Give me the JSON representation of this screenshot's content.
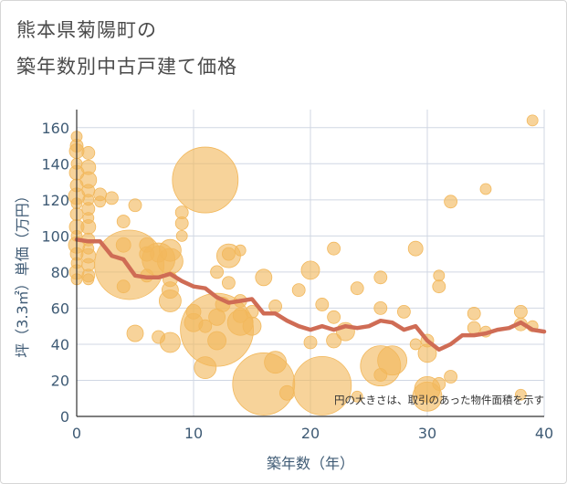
{
  "title_line1": "熊本県菊陽町の",
  "title_line2": "築年数別中古戸建て価格",
  "colors": {
    "bubble": "#f2b85c",
    "line": "#cf6c55",
    "grid": "#d0d7e3",
    "axis_text": "#3f5b75"
  },
  "chart_data": {
    "type": "scatter",
    "xlabel": "築年数（年）",
    "ylabel": "坪（3.3㎡）単価（万円）",
    "xlim": [
      0,
      40
    ],
    "ylim": [
      0,
      170
    ],
    "xticks": [
      "0",
      "10",
      "20",
      "30",
      "40"
    ],
    "yticks": [
      "0",
      "20",
      "40",
      "60",
      "80",
      "100",
      "120",
      "140",
      "160"
    ],
    "annotation": "円の大きさは、取引のあった物件面積を示す",
    "line_series": {
      "x": [
        0,
        1,
        2,
        3,
        4,
        5,
        6,
        7,
        8,
        9,
        10,
        11,
        12,
        13,
        14,
        15,
        16,
        17,
        18,
        19,
        20,
        21,
        22,
        23,
        24,
        25,
        26,
        27,
        28,
        29,
        30,
        31,
        32,
        33,
        34,
        35,
        36,
        37,
        38,
        39,
        40
      ],
      "y": [
        98,
        97,
        97,
        89,
        87,
        78,
        77,
        77,
        79,
        75,
        72,
        71,
        66,
        63,
        64,
        65,
        57,
        57,
        53,
        50,
        48,
        50,
        48,
        50,
        49,
        50,
        53,
        52,
        48,
        50,
        42,
        37,
        40,
        45,
        45,
        46,
        48,
        49,
        52,
        48,
        47
      ]
    },
    "bubbles": [
      {
        "x": 0,
        "y": 155,
        "s": 6
      },
      {
        "x": 0,
        "y": 150,
        "s": 7
      },
      {
        "x": 0,
        "y": 147,
        "s": 8
      },
      {
        "x": 0,
        "y": 140,
        "s": 6
      },
      {
        "x": 0,
        "y": 135,
        "s": 8
      },
      {
        "x": 0,
        "y": 128,
        "s": 7
      },
      {
        "x": 0,
        "y": 122,
        "s": 9
      },
      {
        "x": 0,
        "y": 118,
        "s": 6
      },
      {
        "x": 0,
        "y": 112,
        "s": 7
      },
      {
        "x": 0,
        "y": 105,
        "s": 8
      },
      {
        "x": 0,
        "y": 100,
        "s": 6
      },
      {
        "x": 0,
        "y": 95,
        "s": 9
      },
      {
        "x": 0,
        "y": 90,
        "s": 7
      },
      {
        "x": 0,
        "y": 85,
        "s": 6
      },
      {
        "x": 0,
        "y": 80,
        "s": 8
      },
      {
        "x": 0,
        "y": 76,
        "s": 6
      },
      {
        "x": 1,
        "y": 146,
        "s": 7
      },
      {
        "x": 1,
        "y": 138,
        "s": 8
      },
      {
        "x": 1,
        "y": 131,
        "s": 9
      },
      {
        "x": 1,
        "y": 125,
        "s": 7
      },
      {
        "x": 1,
        "y": 120,
        "s": 6
      },
      {
        "x": 1,
        "y": 115,
        "s": 7
      },
      {
        "x": 1,
        "y": 110,
        "s": 6
      },
      {
        "x": 1,
        "y": 105,
        "s": 8
      },
      {
        "x": 1,
        "y": 98,
        "s": 7
      },
      {
        "x": 1,
        "y": 93,
        "s": 6
      },
      {
        "x": 1,
        "y": 89,
        "s": 8
      },
      {
        "x": 1,
        "y": 84,
        "s": 7
      },
      {
        "x": 1,
        "y": 78,
        "s": 7
      },
      {
        "x": 1,
        "y": 76,
        "s": 6
      },
      {
        "x": 2,
        "y": 123,
        "s": 7
      },
      {
        "x": 2,
        "y": 119,
        "s": 6
      },
      {
        "x": 3,
        "y": 121,
        "s": 7
      },
      {
        "x": 4,
        "y": 108,
        "s": 7
      },
      {
        "x": 4,
        "y": 95,
        "s": 8
      },
      {
        "x": 4.5,
        "y": 84,
        "s": 38
      },
      {
        "x": 4,
        "y": 72,
        "s": 7
      },
      {
        "x": 5,
        "y": 117,
        "s": 7
      },
      {
        "x": 5,
        "y": 46,
        "s": 9
      },
      {
        "x": 6,
        "y": 95,
        "s": 8
      },
      {
        "x": 6,
        "y": 90,
        "s": 8
      },
      {
        "x": 6,
        "y": 78,
        "s": 7
      },
      {
        "x": 7,
        "y": 90,
        "s": 9
      },
      {
        "x": 7,
        "y": 87,
        "s": 18
      },
      {
        "x": 7,
        "y": 44,
        "s": 7
      },
      {
        "x": 8,
        "y": 92,
        "s": 12
      },
      {
        "x": 8,
        "y": 86,
        "s": 14
      },
      {
        "x": 8,
        "y": 76,
        "s": 8
      },
      {
        "x": 8,
        "y": 70,
        "s": 9
      },
      {
        "x": 8,
        "y": 64,
        "s": 12
      },
      {
        "x": 8,
        "y": 41,
        "s": 11
      },
      {
        "x": 9,
        "y": 113,
        "s": 7
      },
      {
        "x": 9,
        "y": 107,
        "s": 7
      },
      {
        "x": 9,
        "y": 100,
        "s": 6
      },
      {
        "x": 10,
        "y": 58,
        "s": 8
      },
      {
        "x": 10,
        "y": 52,
        "s": 10
      },
      {
        "x": 11,
        "y": 131,
        "s": 36
      },
      {
        "x": 11,
        "y": 27,
        "s": 12
      },
      {
        "x": 11,
        "y": 50,
        "s": 7
      },
      {
        "x": 12,
        "y": 80,
        "s": 7
      },
      {
        "x": 12,
        "y": 55,
        "s": 9
      },
      {
        "x": 12,
        "y": 48,
        "s": 40
      },
      {
        "x": 12,
        "y": 42,
        "s": 10
      },
      {
        "x": 12.5,
        "y": 62,
        "s": 8
      },
      {
        "x": 13,
        "y": 89,
        "s": 13
      },
      {
        "x": 13,
        "y": 90,
        "s": 7
      },
      {
        "x": 13,
        "y": 74,
        "s": 7
      },
      {
        "x": 14,
        "y": 92,
        "s": 6
      },
      {
        "x": 14,
        "y": 64,
        "s": 7
      },
      {
        "x": 14,
        "y": 56,
        "s": 8
      },
      {
        "x": 14,
        "y": 52,
        "s": 14
      },
      {
        "x": 15,
        "y": 50,
        "s": 10
      },
      {
        "x": 15,
        "y": 58,
        "s": 7
      },
      {
        "x": 16,
        "y": 77,
        "s": 9
      },
      {
        "x": 16,
        "y": 18,
        "s": 34
      },
      {
        "x": 17,
        "y": 61,
        "s": 7
      },
      {
        "x": 17,
        "y": 30,
        "s": 12
      },
      {
        "x": 18,
        "y": 13,
        "s": 8
      },
      {
        "x": 19,
        "y": 70,
        "s": 7
      },
      {
        "x": 20,
        "y": 81,
        "s": 10
      },
      {
        "x": 20,
        "y": 41,
        "s": 7
      },
      {
        "x": 21,
        "y": 17,
        "s": 32
      },
      {
        "x": 21,
        "y": 62,
        "s": 7
      },
      {
        "x": 22,
        "y": 93,
        "s": 7
      },
      {
        "x": 22,
        "y": 42,
        "s": 8
      },
      {
        "x": 22,
        "y": 55,
        "s": 7
      },
      {
        "x": 23,
        "y": 47,
        "s": 10
      },
      {
        "x": 24,
        "y": 71,
        "s": 7
      },
      {
        "x": 24,
        "y": 11,
        "s": 6
      },
      {
        "x": 26,
        "y": 77,
        "s": 7
      },
      {
        "x": 26,
        "y": 60,
        "s": 7
      },
      {
        "x": 26,
        "y": 28,
        "s": 22
      },
      {
        "x": 26,
        "y": 23,
        "s": 7
      },
      {
        "x": 27,
        "y": 31,
        "s": 16
      },
      {
        "x": 28,
        "y": 58,
        "s": 7
      },
      {
        "x": 29,
        "y": 93,
        "s": 8
      },
      {
        "x": 29,
        "y": 40,
        "s": 6
      },
      {
        "x": 30,
        "y": 42,
        "s": 7
      },
      {
        "x": 30,
        "y": 35,
        "s": 10
      },
      {
        "x": 30,
        "y": 15,
        "s": 14
      },
      {
        "x": 30,
        "y": 11,
        "s": 16
      },
      {
        "x": 31,
        "y": 78,
        "s": 6
      },
      {
        "x": 31,
        "y": 72,
        "s": 7
      },
      {
        "x": 31,
        "y": 18,
        "s": 7
      },
      {
        "x": 32,
        "y": 119,
        "s": 7
      },
      {
        "x": 32,
        "y": 22,
        "s": 7
      },
      {
        "x": 34,
        "y": 57,
        "s": 7
      },
      {
        "x": 34,
        "y": 49,
        "s": 7
      },
      {
        "x": 35,
        "y": 126,
        "s": 6
      },
      {
        "x": 35,
        "y": 47,
        "s": 6
      },
      {
        "x": 38,
        "y": 58,
        "s": 7
      },
      {
        "x": 38,
        "y": 51,
        "s": 7
      },
      {
        "x": 38,
        "y": 12,
        "s": 6
      },
      {
        "x": 39,
        "y": 164,
        "s": 6
      },
      {
        "x": 39,
        "y": 50,
        "s": 6
      }
    ]
  }
}
